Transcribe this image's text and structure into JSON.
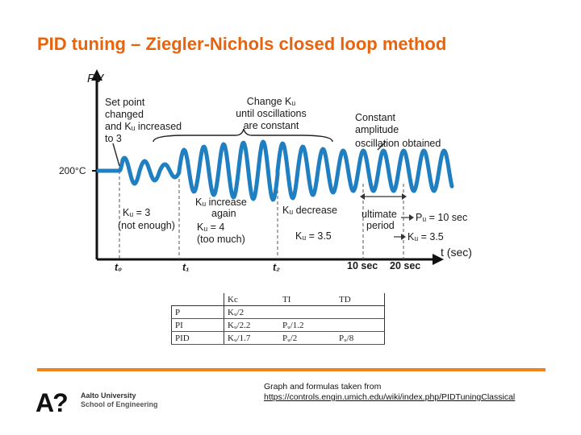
{
  "slide": {
    "title": "PID tuning – Ziegler-Nichols closed loop method"
  },
  "diagram": {
    "y_axis_label": "PV",
    "x_axis_label": "t (sec)",
    "setpoint_label": "200°C",
    "time_marks": [
      "t₀",
      "t₁",
      "t₂",
      "10 sec",
      "20 sec"
    ],
    "annotations": {
      "setpoint_changed": [
        "Set point",
        "changed",
        "and Kᵤ increased",
        "to 3"
      ],
      "change_ku": [
        "Change Kᵤ",
        "until oscillations",
        "are constant"
      ],
      "constant_amp": [
        "Constant",
        "amplitude",
        "oscillation obtained"
      ],
      "ku3": [
        "Kᵤ = 3",
        "(not enough)"
      ],
      "ku_increase": [
        "Kᵤ increase",
        "again",
        "Kᵤ = 4",
        "(too much)"
      ],
      "ku_decrease": "Kᵤ decrease",
      "ku35": "Kᵤ = 3.5",
      "ultimate_period": [
        "ultimate",
        "period"
      ],
      "pu_value": "Pᵤ = 10 sec",
      "ku_value": "Kᵤ = 3.5"
    },
    "colors": {
      "wave": "#1f7fc0",
      "axis": "#111111"
    }
  },
  "table": {
    "headers": [
      "",
      "Kc",
      "TI",
      "TD"
    ],
    "rows": [
      [
        "P",
        "Kᵤ/2",
        "",
        ""
      ],
      [
        "PI",
        "Kᵤ/2.2",
        "Pᵤ/1.2",
        ""
      ],
      [
        "PID",
        "Kᵤ/1.7",
        "Pᵤ/2",
        "Pᵤ/8"
      ]
    ]
  },
  "footer": {
    "university": "Aalto University",
    "school": "School of Engineering",
    "logo_text": "A?",
    "credit_line1": "Graph and formulas taken from",
    "credit_line2": "https://controls.engin.umich.edu/wiki/index.php/PIDTuningClassical",
    "accent_color": "#f0821e"
  }
}
